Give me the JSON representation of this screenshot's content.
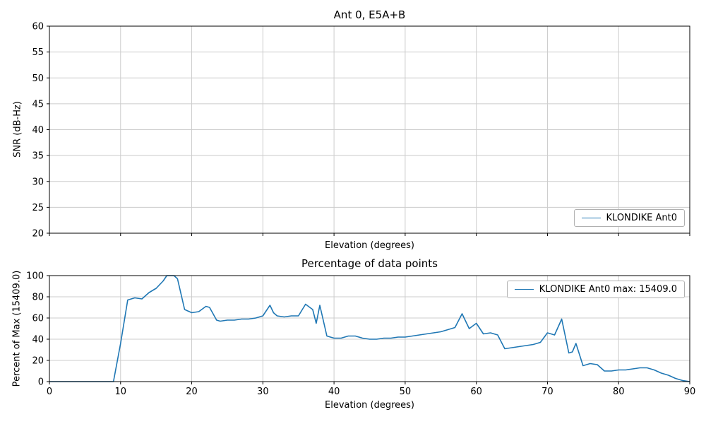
{
  "figure": {
    "background": "#ffffff",
    "line_color": "#1f77b4",
    "grid_color": "#cccccc",
    "spine_color": "#000000"
  },
  "chart_data": [
    {
      "type": "line",
      "title": "Ant 0, E5A+B",
      "xlabel": "Elevation (degrees)",
      "ylabel": "SNR (dB-Hz)",
      "xlim": [
        0,
        90
      ],
      "ylim": [
        20,
        60
      ],
      "xticks": [
        0,
        10,
        20,
        30,
        40,
        50,
        60,
        70,
        80,
        90
      ],
      "yticks": [
        20,
        25,
        30,
        35,
        40,
        45,
        50,
        55,
        60
      ],
      "show_xticklabels": false,
      "grid": true,
      "legend": {
        "position": "lower right",
        "entries": [
          {
            "label": "KLONDIKE Ant0",
            "color": "#1f77b4"
          }
        ]
      },
      "series": []
    },
    {
      "type": "line",
      "title": "Percentage of data points",
      "xlabel": "Elevation (degrees)",
      "ylabel": "Percent of Max (15409.0)",
      "xlim": [
        0,
        90
      ],
      "ylim": [
        0,
        100
      ],
      "xticks": [
        0,
        10,
        20,
        30,
        40,
        50,
        60,
        70,
        80,
        90
      ],
      "yticks": [
        0,
        20,
        40,
        60,
        80,
        100
      ],
      "show_xticklabels": true,
      "grid": true,
      "legend": {
        "position": "upper right",
        "entries": [
          {
            "label": "KLONDIKE Ant0 max: 15409.0",
            "color": "#1f77b4"
          }
        ]
      },
      "series": [
        {
          "name": "KLONDIKE Ant0",
          "x": [
            0,
            1,
            2,
            3,
            4,
            5,
            6,
            7,
            8,
            9,
            10,
            11,
            12,
            13,
            14,
            15,
            16,
            16.5,
            17.5,
            18,
            19,
            20,
            21,
            22,
            22.5,
            23.5,
            24,
            25,
            26,
            27,
            28,
            29,
            30,
            31,
            31.5,
            32,
            33,
            34,
            35,
            36,
            37,
            37.5,
            38,
            39,
            40,
            41,
            42,
            43,
            44,
            45,
            46,
            47,
            48,
            49,
            50,
            51,
            52,
            53,
            54,
            55,
            56,
            57,
            58,
            59,
            60,
            61,
            62,
            63,
            64,
            65,
            66,
            67,
            68,
            69,
            70,
            70.5,
            71,
            72,
            73,
            73.5,
            74,
            75,
            76,
            77,
            78,
            79,
            80,
            81,
            82,
            83,
            84,
            85,
            86,
            87,
            88,
            89,
            90
          ],
          "y": [
            0,
            0,
            0,
            0,
            0,
            0,
            0,
            0,
            0,
            0,
            36,
            77,
            79,
            78,
            84,
            88,
            95,
            100,
            100,
            97,
            68,
            65,
            66,
            71,
            70,
            58,
            57,
            58,
            58,
            59,
            59,
            60,
            62,
            72,
            65,
            62,
            61,
            62,
            62,
            73,
            68,
            55,
            72,
            43,
            41,
            41,
            43,
            43,
            41,
            40,
            40,
            41,
            41,
            42,
            42,
            43,
            44,
            45,
            46,
            47,
            49,
            51,
            64,
            50,
            55,
            45,
            46,
            44,
            31,
            32,
            33,
            34,
            35,
            37,
            46,
            45,
            44,
            59,
            27,
            28,
            36,
            15,
            17,
            16,
            10,
            10,
            11,
            11,
            12,
            13,
            13,
            11,
            8,
            6,
            3,
            1,
            0
          ]
        }
      ]
    }
  ]
}
